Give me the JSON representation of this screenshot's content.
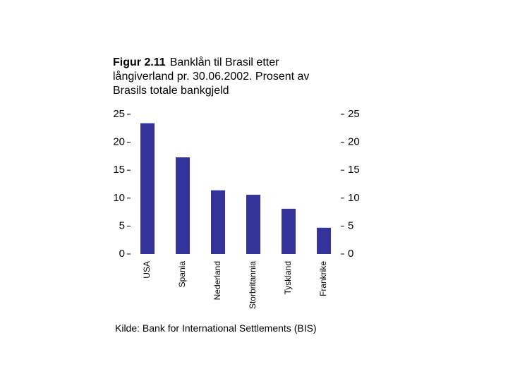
{
  "chart_data": {
    "type": "bar",
    "title_label": "Figur 2.11",
    "title": "Banklån til Brasil etter långiverland pr. 30.06.2002. Prosent av Brasils totale bankgjeld",
    "source": "Kilde: Bank for International Settlements (BIS)",
    "categories": [
      "USA",
      "Spania",
      "Nederland",
      "Storbritannia",
      "Tyskland",
      "Frankrike"
    ],
    "values": [
      23.4,
      17.3,
      11.4,
      10.6,
      8.1,
      4.7
    ],
    "color": "#333399",
    "ylim": [
      0,
      25
    ],
    "yticks": [
      0,
      5,
      10,
      15,
      20,
      25
    ],
    "y2lim": [
      0,
      25
    ],
    "y2ticks": [
      0,
      5,
      10,
      15,
      20,
      25
    ],
    "grid": false
  }
}
